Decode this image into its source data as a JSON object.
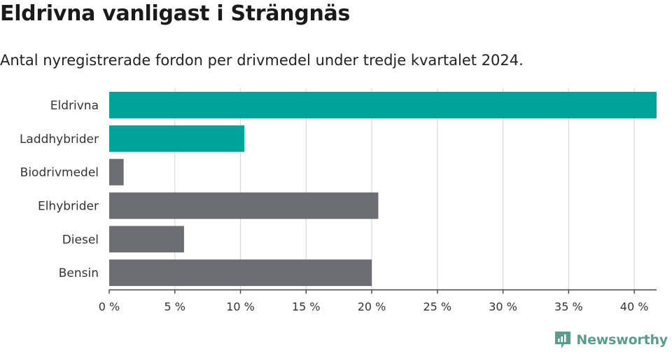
{
  "title": "Eldrivna vanligast i Strängnäs",
  "subtitle": "Antal nyregistrerade fordon per drivmedel under tredje kvartalet 2024.",
  "brand": {
    "name": "Newsworthy",
    "icon": "newsworthy-logo-icon"
  },
  "colors": {
    "highlight": "#00a399",
    "other": "#6d6e73",
    "grid": "#d9d9d9",
    "axis": "#444444",
    "brand": "#5d9b8f"
  },
  "chart_data": {
    "type": "bar",
    "orientation": "horizontal",
    "categories": [
      "Eldrivna",
      "Laddhybrider",
      "Biodrivmedel",
      "Elhybrider",
      "Diesel",
      "Bensin"
    ],
    "values": [
      41.7,
      10.3,
      1.1,
      20.5,
      5.7,
      20.0
    ],
    "highlight": [
      true,
      true,
      false,
      false,
      false,
      false
    ],
    "xlim": [
      0,
      41.7
    ],
    "xticks": [
      0,
      5,
      10,
      15,
      20,
      25,
      30,
      35,
      40
    ],
    "xtick_labels": [
      "0 %",
      "5 %",
      "10 %",
      "15 %",
      "20 %",
      "25 %",
      "30 %",
      "35 %",
      "40 %"
    ],
    "grid": true
  }
}
